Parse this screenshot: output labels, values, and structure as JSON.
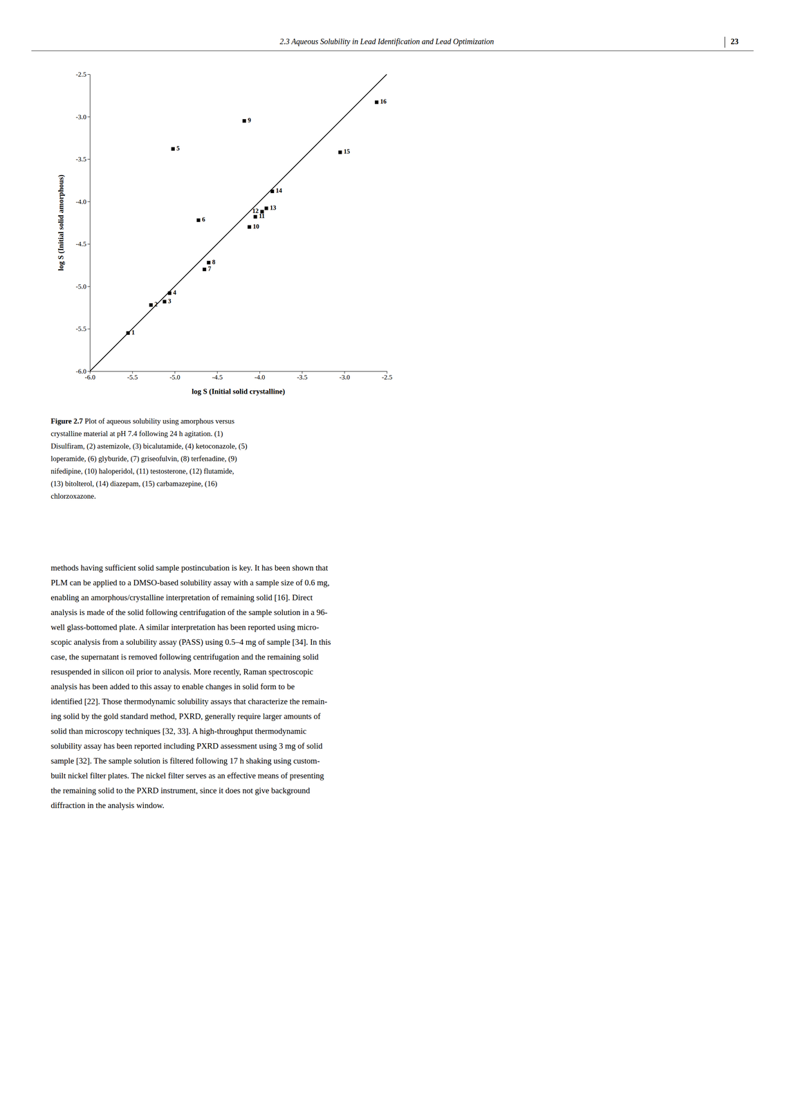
{
  "header": "2.3  Aqueous Solubility in Lead Identification and Lead Optimization",
  "page_number": "23",
  "caption_bold": "Figure 2.7",
  "caption": [
    " Plot of aqueous solubility using amorphous versus",
    "crystalline material at pH 7.4 following 24 h agitation. (1)",
    "Disulfiram, (2) astemizole, (3) bicalutamide, (4) ketoconazole, (5)",
    "loperamide, (6) glyburide, (7) griseofulvin, (8) terfenadine, (9)",
    "nifedipine, (10) haloperidol, (11) testosterone, (12) flutamide,",
    "(13) bitolterol, (14) diazepam, (15) carbamazepine, (16)",
    "chlorzoxazone."
  ],
  "body": [
    "methods having sufficient solid sample postincubation is key. It has been shown that",
    "PLM can be applied to a DMSO-based solubility assay with a sample size of 0.6 mg,",
    "enabling an amorphous/crystalline interpretation of remaining solid [16].  Direct",
    "analysis is made of the solid following centrifugation of the sample solution in a 96-",
    "well glass-bottomed plate. A similar interpretation has been reported using micro-",
    "scopic analysis from a solubility assay (PASS) using 0.5–4 mg of sample [34]. In this",
    "case, the supernatant is removed following centrifugation and the remaining solid",
    "resuspended in silicon oil prior to analysis. More recently, Raman spectroscopic",
    "analysis has been added to this assay to enable changes in solid form to be",
    "identified [22]. Those thermodynamic solubility assays that characterize the remain-",
    "ing solid by the gold standard method, PXRD, generally require larger amounts of",
    "solid than microscopy techniques [32, 33]. A high-throughput thermodynamic",
    "solubility assay has been reported including PXRD assessment using 3 mg of solid",
    "sample [32]. The sample solution is filtered following 17 h shaking using custom-",
    "built nickel filter plates. The nickel filter serves as an effective means of presenting",
    "the remaining solid to the PXRD instrument, since it does not give background",
    "diffraction in the analysis window."
  ],
  "chart_data": {
    "type": "scatter",
    "x": [
      -5.55,
      -5.28,
      -5.12,
      -5.06,
      -5.02,
      -4.72,
      -4.65,
      -4.6,
      -4.18,
      -4.12,
      -4.05,
      -3.97,
      -3.92,
      -3.85,
      -3.05,
      -2.62
    ],
    "values": [
      -5.55,
      -5.22,
      -5.18,
      -5.08,
      -3.38,
      -4.22,
      -4.8,
      -4.72,
      -3.05,
      -4.3,
      -4.18,
      -4.12,
      -4.08,
      -3.88,
      -3.42,
      -2.83
    ],
    "labels": [
      "1",
      "2",
      "3",
      "4",
      "5",
      "6",
      "7",
      "8",
      "9",
      "10",
      "11",
      "12",
      "13",
      "14",
      "15",
      "16"
    ],
    "xlabel": "log S (Initial solid crystalline)",
    "ylabel": "log S (Initial solid amorphous)",
    "xlim": [
      -6.0,
      -2.5
    ],
    "ylim": [
      -6.0,
      -2.5
    ],
    "xticks": [
      {
        "value": -6.0,
        "label": "-6.0"
      },
      -5.5,
      {
        "value": -5.0,
        "label": "-5.0"
      },
      -4.5,
      {
        "value": -4.0,
        "label": "-4.0"
      },
      -3.5,
      {
        "value": -3.0,
        "label": "-3.0"
      },
      -2.5
    ],
    "yticks": [
      {
        "value": -6.0,
        "label": "-6.0"
      },
      -5.5,
      {
        "value": -5.0,
        "label": "-5.0"
      },
      -4.5,
      {
        "value": -4.0,
        "label": "-4.0"
      },
      -3.5,
      {
        "value": -3.0,
        "label": "-3.0"
      },
      -2.5
    ],
    "color": "#000000",
    "marker": "square",
    "grid": false
  }
}
